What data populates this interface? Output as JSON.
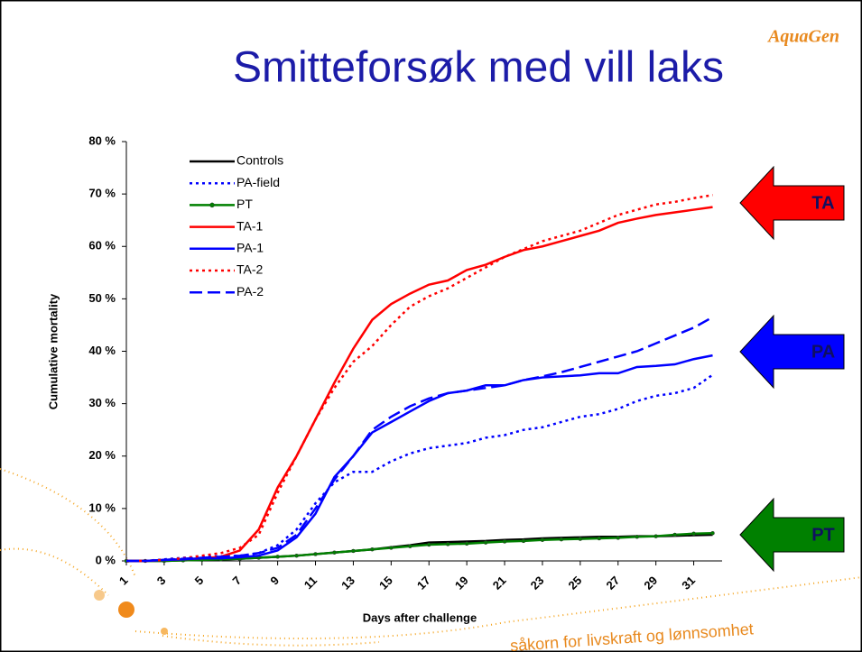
{
  "logo": "AquaGen",
  "slogan": "såkorn for livskraft og lønnsomhet",
  "chart_data": {
    "type": "line",
    "title": "Smitteforsøk med vill laks",
    "x_label": "Days after challenge",
    "y_label": "Cumulative mortality",
    "x": [
      1,
      2,
      3,
      4,
      5,
      6,
      7,
      8,
      9,
      10,
      11,
      12,
      13,
      14,
      15,
      16,
      17,
      18,
      19,
      20,
      21,
      22,
      23,
      24,
      25,
      26,
      27,
      28,
      29,
      30,
      31,
      32
    ],
    "xlim": [
      1,
      32.5
    ],
    "xticks": [
      1,
      3,
      5,
      7,
      9,
      11,
      13,
      15,
      17,
      19,
      21,
      23,
      25,
      27,
      29,
      31
    ],
    "ylim": [
      0,
      80
    ],
    "yticks": [
      {
        "value": 0,
        "label": "0 %"
      },
      {
        "value": 10,
        "label": "10 %"
      },
      {
        "value": 20,
        "label": "20 %"
      },
      {
        "value": 30,
        "label": "30 %"
      },
      {
        "value": 40,
        "label": "40 %"
      },
      {
        "value": 50,
        "label": "50 %"
      },
      {
        "value": 60,
        "label": "60 %"
      },
      {
        "value": 70,
        "label": "70 %"
      },
      {
        "value": 80,
        "label": "80 %"
      }
    ],
    "legend": "upper-left",
    "series": [
      {
        "name": "Controls",
        "color": "#000000",
        "line_style": "solid",
        "marker": false,
        "values": [
          0,
          0,
          0,
          0.1,
          0.2,
          0.3,
          0.4,
          0.6,
          0.8,
          1,
          1.3,
          1.6,
          1.9,
          2.2,
          2.6,
          3,
          3.5,
          3.6,
          3.7,
          3.8,
          4,
          4.1,
          4.3,
          4.4,
          4.5,
          4.6,
          4.6,
          4.7,
          4.7,
          4.8,
          4.9,
          5
        ]
      },
      {
        "name": "PA-field",
        "color": "#0000ff",
        "line_style": "dotted",
        "marker": false,
        "values": [
          0,
          0,
          0.3,
          0.6,
          0.8,
          0.9,
          1,
          1.5,
          3,
          6,
          11,
          15,
          17,
          17,
          19,
          20.5,
          21.5,
          22,
          22.5,
          23.5,
          24,
          25,
          25.5,
          26.5,
          27.5,
          28,
          29,
          30.5,
          31.5,
          32,
          33,
          35.5
        ]
      },
      {
        "name": "PT",
        "color": "#008000",
        "line_style": "solid",
        "marker": true,
        "values": [
          0,
          0,
          0,
          0.1,
          0.2,
          0.3,
          0.4,
          0.6,
          0.8,
          1,
          1.3,
          1.6,
          1.9,
          2.2,
          2.5,
          2.8,
          3.1,
          3.2,
          3.3,
          3.5,
          3.7,
          3.8,
          4,
          4.1,
          4.2,
          4.3,
          4.4,
          4.6,
          4.7,
          5,
          5.2,
          5.3
        ]
      },
      {
        "name": "TA-1",
        "color": "#ff0000",
        "line_style": "solid",
        "marker": false,
        "values": [
          0,
          0,
          0.2,
          0.3,
          0.5,
          0.8,
          2,
          6,
          14,
          20,
          27,
          34,
          40.5,
          46,
          49,
          51,
          52.7,
          53.5,
          55.5,
          56.5,
          58,
          59.3,
          60,
          61,
          62,
          63,
          64.5,
          65.3,
          66,
          66.5,
          67,
          67.5
        ]
      },
      {
        "name": "PA-1",
        "color": "#0000ff",
        "line_style": "solid",
        "marker": false,
        "values": [
          0,
          0,
          0.2,
          0.3,
          0.5,
          0.5,
          0.7,
          1,
          2,
          4.5,
          9,
          16,
          20,
          24.5,
          26.5,
          28.5,
          30.5,
          32,
          32.5,
          33.5,
          33.5,
          34.5,
          35,
          35.2,
          35.4,
          35.8,
          35.8,
          37,
          37.2,
          37.5,
          38.5,
          39.2
        ]
      },
      {
        "name": "TA-2",
        "color": "#ff0000",
        "line_style": "dotted",
        "marker": false,
        "values": [
          0,
          0,
          0.2,
          0.5,
          1,
          1.5,
          2.5,
          5,
          13,
          20,
          27,
          33,
          38,
          41,
          45,
          48.5,
          50.5,
          52,
          54,
          56,
          58,
          59.5,
          61,
          62,
          63,
          64.5,
          66,
          67,
          68,
          68.5,
          69.2,
          69.8
        ]
      },
      {
        "name": "PA-2",
        "color": "#0000ff",
        "line_style": "dashed",
        "marker": false,
        "values": [
          0,
          0,
          0.2,
          0.4,
          0.6,
          0.8,
          1,
          1.5,
          2.5,
          5,
          10,
          15.5,
          20,
          25,
          27.5,
          29.5,
          31,
          32,
          32.5,
          33,
          33.5,
          34.5,
          35.2,
          36,
          37,
          38,
          39,
          40,
          41.5,
          43,
          44.5,
          46.5
        ]
      }
    ],
    "annotations": [
      {
        "text": "TA",
        "color": "#ff0000"
      },
      {
        "text": "PA",
        "color": "#0000ff"
      },
      {
        "text": "PT",
        "color": "#008000"
      }
    ]
  }
}
